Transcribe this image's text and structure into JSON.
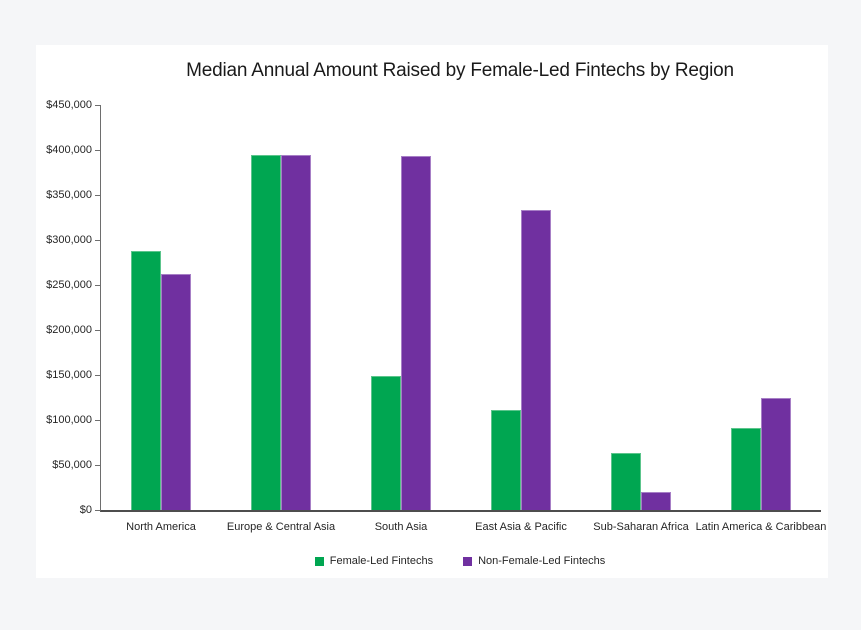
{
  "page": {
    "background_color": "#f5f6f8",
    "panel_color": "#ffffff",
    "axis_color": "#595959",
    "text_color": "#262626"
  },
  "chart_data": {
    "type": "bar",
    "title": "Median Annual Amount Raised by Female-Led Fintechs by Region",
    "categories": [
      "North America",
      "Europe & Central Asia",
      "South Asia",
      "East Asia & Pacific",
      "Sub-Saharan Africa",
      "Latin America & Caribbean"
    ],
    "series": [
      {
        "name": "Female-Led Fintechs",
        "color": "#00A651",
        "edge_color": "#5cc58c",
        "values": [
          288000,
          394000,
          149000,
          111000,
          63000,
          91000
        ]
      },
      {
        "name": "Non-Female-Led Fintechs",
        "color": "#7030A0",
        "edge_color": "#a77fc6",
        "values": [
          262000,
          395000,
          393000,
          333000,
          20000,
          125000
        ]
      }
    ],
    "xlabel": "",
    "ylabel": "",
    "ylim": [
      0,
      450000
    ],
    "ytick_step": 50000,
    "ytick_labels": [
      "$0",
      "$50,000",
      "$100,000",
      "$150,000",
      "$200,000",
      "$250,000",
      "$300,000",
      "$350,000",
      "$400,000",
      "$450,000"
    ],
    "grid": false,
    "legend_position": "bottom"
  }
}
